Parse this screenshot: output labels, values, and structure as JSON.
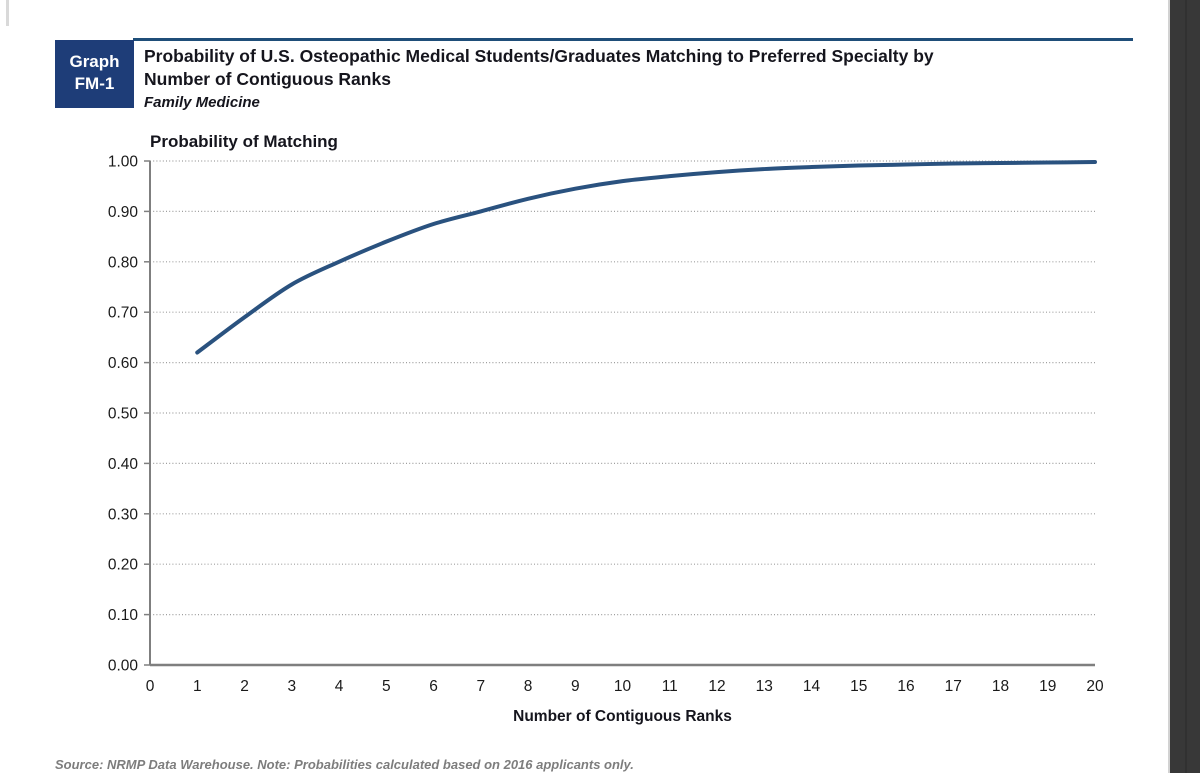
{
  "page": {
    "badge": {
      "line1": "Graph",
      "line2": "FM-1"
    },
    "title_lines": [
      "Probability of U.S. Osteopathic Medical Students/Graduates Matching to Preferred Specialty by",
      "Number of Contiguous Ranks"
    ],
    "subtitle": "Family Medicine",
    "source_note": "Source: NRMP Data Warehouse. Note: Probabilities calculated based on 2016 applicants only.",
    "colors": {
      "badge_navy": "#1e3d78",
      "rule_navy": "#1f4e79",
      "curve_blue": "#2a527f",
      "grid_gray": "#9e9e9e",
      "axis_gray": "#7f7f7f",
      "text_dark": "#1a1a1a",
      "source_gray": "#7d7d7d",
      "viewer_edge_dark": "#383838"
    }
  },
  "chart_data": {
    "type": "line",
    "title": "Probability of Matching",
    "xlabel": "Number of Contiguous Ranks",
    "ylabel": "Probability of Matching",
    "x": [
      1,
      2,
      3,
      4,
      5,
      6,
      7,
      8,
      9,
      10,
      11,
      12,
      13,
      14,
      15,
      16,
      17,
      18,
      19,
      20
    ],
    "y": [
      0.62,
      0.69,
      0.755,
      0.8,
      0.84,
      0.875,
      0.9,
      0.925,
      0.945,
      0.96,
      0.97,
      0.978,
      0.984,
      0.988,
      0.991,
      0.993,
      0.995,
      0.996,
      0.997,
      0.998
    ],
    "xlim": [
      0,
      20
    ],
    "ylim": [
      0.0,
      1.0
    ],
    "xticks": [
      0,
      1,
      2,
      3,
      4,
      5,
      6,
      7,
      8,
      9,
      10,
      11,
      12,
      13,
      14,
      15,
      16,
      17,
      18,
      19,
      20
    ],
    "ytick_labels": [
      "0.00",
      "0.10",
      "0.20",
      "0.30",
      "0.40",
      "0.50",
      "0.60",
      "0.70",
      "0.80",
      "0.90",
      "1.00"
    ],
    "grid": true,
    "legend": "none",
    "line_color": "#2a527f"
  }
}
